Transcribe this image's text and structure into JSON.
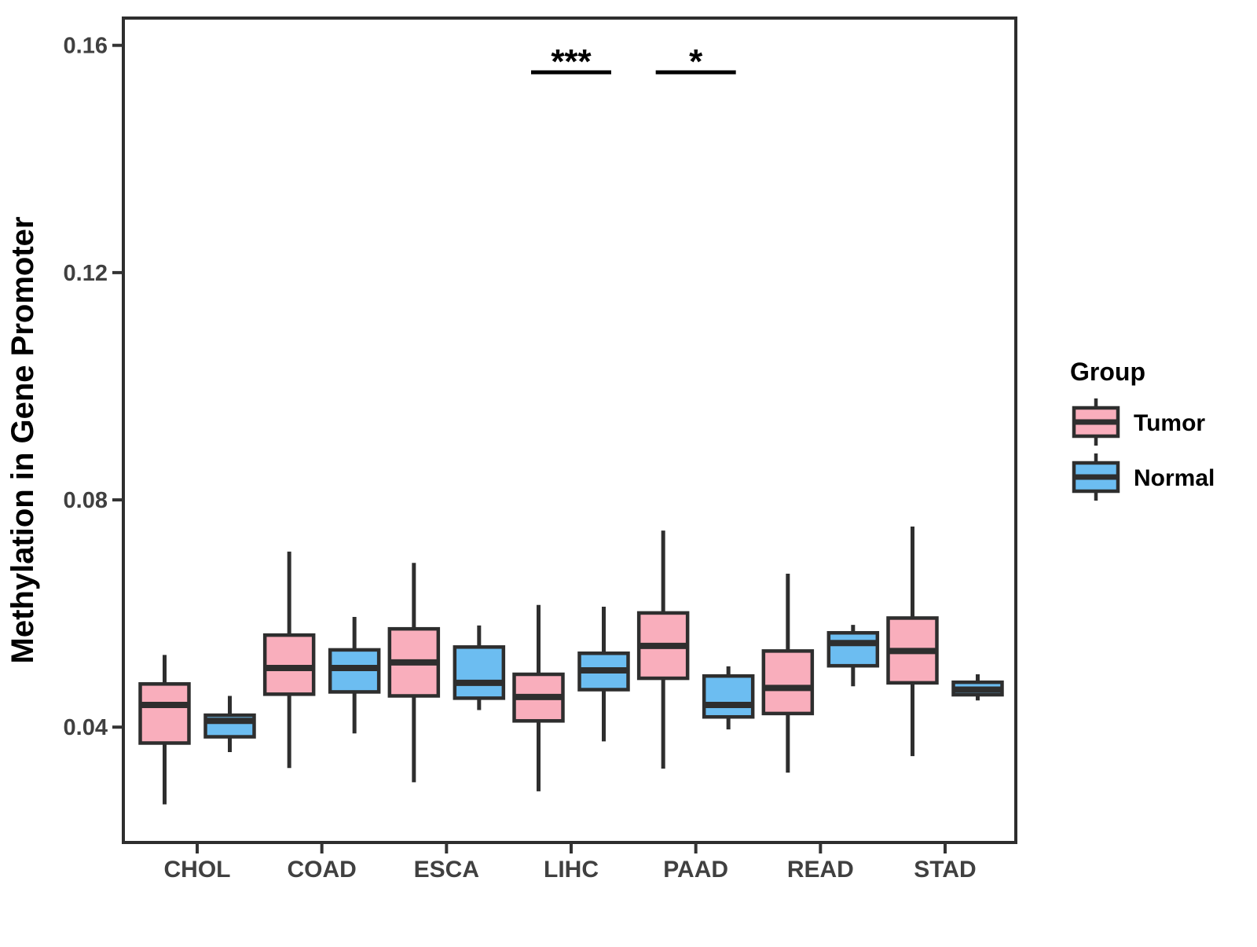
{
  "chart_data": {
    "type": "boxplot",
    "title": "",
    "xlabel": "",
    "ylabel": "Methylation in Gene Promoter",
    "categories": [
      "CHOL",
      "COAD",
      "ESCA",
      "LIHC",
      "PAAD",
      "READ",
      "STAD"
    ],
    "ylim": [
      0.0197,
      0.1648
    ],
    "yticks": [
      {
        "value": 0.04,
        "label": "0.04"
      },
      {
        "value": 0.08,
        "label": "0.08"
      },
      {
        "value": 0.12,
        "label": "0.12"
      },
      {
        "value": 0.16,
        "label": "0.16"
      }
    ],
    "grid": "off",
    "legend": {
      "title": "Group",
      "position": "right",
      "entries": [
        {
          "label": "Tumor",
          "color": "#F9AEBC"
        },
        {
          "label": "Normal",
          "color": "#6CBDF1"
        }
      ]
    },
    "colors": {
      "tumor_fill": "#F9AEBC",
      "normal_fill": "#6CBDF1",
      "box_stroke": "#2E2E2E",
      "axis_text": "#404040",
      "title_text": "#000000"
    },
    "series": [
      {
        "name": "Tumor",
        "color": "#F9AEBC",
        "boxes": [
          {
            "category": "CHOL",
            "whisker_low": 0.0264,
            "q1": 0.0372,
            "median": 0.0439,
            "q3": 0.0476,
            "whisker_high": 0.0527
          },
          {
            "category": "COAD",
            "whisker_low": 0.0328,
            "q1": 0.0458,
            "median": 0.0504,
            "q3": 0.0562,
            "whisker_high": 0.0709
          },
          {
            "category": "ESCA",
            "whisker_low": 0.0303,
            "q1": 0.0455,
            "median": 0.0514,
            "q3": 0.0573,
            "whisker_high": 0.0689
          },
          {
            "category": "LIHC",
            "whisker_low": 0.0287,
            "q1": 0.0411,
            "median": 0.0453,
            "q3": 0.0493,
            "whisker_high": 0.0615
          },
          {
            "category": "PAAD",
            "whisker_low": 0.0327,
            "q1": 0.0486,
            "median": 0.0543,
            "q3": 0.0601,
            "whisker_high": 0.0746
          },
          {
            "category": "READ",
            "whisker_low": 0.032,
            "q1": 0.0424,
            "median": 0.0469,
            "q3": 0.0534,
            "whisker_high": 0.067
          },
          {
            "category": "STAD",
            "whisker_low": 0.0349,
            "q1": 0.0478,
            "median": 0.0534,
            "q3": 0.0592,
            "whisker_high": 0.0753
          }
        ]
      },
      {
        "name": "Normal",
        "color": "#6CBDF1",
        "boxes": [
          {
            "category": "CHOL",
            "whisker_low": 0.0356,
            "q1": 0.0383,
            "median": 0.0411,
            "q3": 0.0421,
            "whisker_high": 0.0455
          },
          {
            "category": "COAD",
            "whisker_low": 0.0389,
            "q1": 0.0462,
            "median": 0.0504,
            "q3": 0.0536,
            "whisker_high": 0.0594
          },
          {
            "category": "ESCA",
            "whisker_low": 0.043,
            "q1": 0.0451,
            "median": 0.0478,
            "q3": 0.0541,
            "whisker_high": 0.0579
          },
          {
            "category": "LIHC",
            "whisker_low": 0.0375,
            "q1": 0.0466,
            "median": 0.05,
            "q3": 0.053,
            "whisker_high": 0.0612
          },
          {
            "category": "PAAD",
            "whisker_low": 0.0396,
            "q1": 0.0418,
            "median": 0.0439,
            "q3": 0.049,
            "whisker_high": 0.0507
          },
          {
            "category": "READ",
            "whisker_low": 0.0472,
            "q1": 0.0508,
            "median": 0.0548,
            "q3": 0.0566,
            "whisker_high": 0.058
          },
          {
            "category": "STAD",
            "whisker_low": 0.0447,
            "q1": 0.0457,
            "median": 0.0466,
            "q3": 0.0479,
            "whisker_high": 0.0493
          }
        ]
      }
    ],
    "significance": [
      {
        "category": "LIHC",
        "label": "***"
      },
      {
        "category": "PAAD",
        "label": "*"
      }
    ]
  }
}
